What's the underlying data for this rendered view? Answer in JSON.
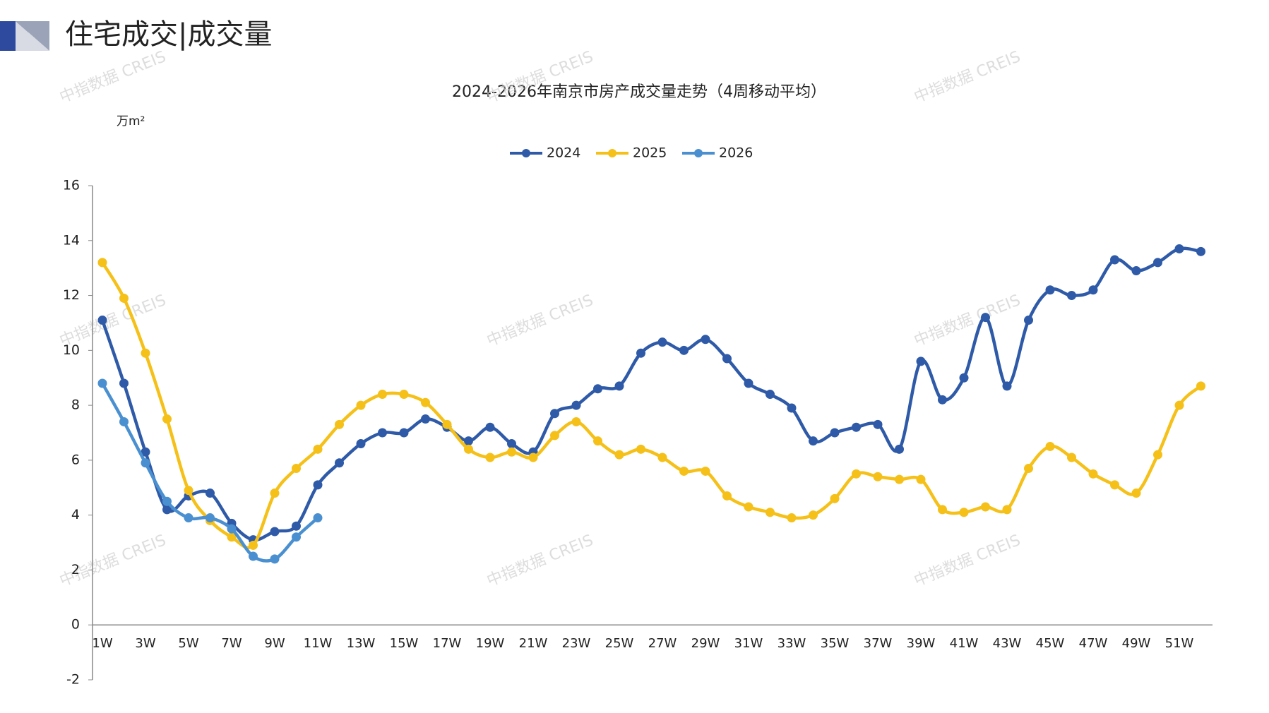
{
  "header": {
    "title": "住宅成交|成交量"
  },
  "watermark": "中指数据 CREIS",
  "chart_data": {
    "type": "line",
    "title": "2024-2026年南京市房产成交量走势（4周移动平均）",
    "ylabel": "万m²",
    "categories": [
      "1W",
      null,
      "3W",
      null,
      "5W",
      null,
      "7W",
      null,
      "9W",
      null,
      "11W",
      null,
      "13W",
      null,
      "15W",
      null,
      "17W",
      null,
      "19W",
      null,
      "21W",
      null,
      "23W",
      null,
      "25W",
      null,
      "27W",
      null,
      "29W",
      null,
      "31W",
      null,
      "33W",
      null,
      "35W",
      null,
      "37W",
      null,
      "39W",
      null,
      "41W",
      null,
      "43W",
      null,
      "45W",
      null,
      "47W",
      null,
      "49W",
      null,
      "51W",
      null
    ],
    "series": [
      {
        "name": "2024",
        "color": "#2e5aa8",
        "values": [
          11.1,
          8.8,
          6.3,
          4.2,
          4.7,
          4.8,
          3.7,
          3.1,
          3.4,
          3.6,
          5.1,
          5.9,
          6.6,
          7.0,
          7.0,
          7.5,
          7.2,
          6.7,
          7.2,
          6.6,
          6.3,
          7.7,
          8.0,
          8.6,
          8.7,
          9.9,
          10.3,
          10.0,
          10.4,
          9.7,
          8.8,
          8.4,
          7.9,
          6.7,
          7.0,
          7.2,
          7.3,
          6.4,
          9.6,
          8.2,
          9.0,
          11.2,
          8.7,
          11.1,
          12.2,
          12.0,
          12.2,
          13.3,
          12.9,
          13.2,
          13.7,
          13.6
        ]
      },
      {
        "name": "2025",
        "color": "#f5c018",
        "values": [
          13.2,
          11.9,
          9.9,
          7.5,
          4.9,
          3.8,
          3.2,
          2.9,
          4.8,
          5.7,
          6.4,
          7.3,
          8.0,
          8.4,
          8.4,
          8.1,
          7.3,
          6.4,
          6.1,
          6.3,
          6.1,
          6.9,
          7.4,
          6.7,
          6.2,
          6.4,
          6.1,
          5.6,
          5.6,
          4.7,
          4.3,
          4.1,
          3.9,
          4.0,
          4.6,
          5.5,
          5.4,
          5.3,
          5.3,
          4.2,
          4.1,
          4.3,
          4.2,
          5.7,
          6.5,
          6.1,
          5.5,
          5.1,
          4.8,
          6.2,
          8.0,
          8.7
        ]
      },
      {
        "name": "2026",
        "color": "#4a90d0",
        "values": [
          8.8,
          7.4,
          5.9,
          4.5,
          3.9,
          3.9,
          3.5,
          2.5,
          2.4,
          3.2,
          3.9,
          null,
          null,
          null,
          null,
          null,
          null,
          null,
          null,
          null,
          null,
          null,
          null,
          null,
          null,
          null,
          null,
          null,
          null,
          null,
          null,
          null,
          null,
          null,
          null,
          null,
          null,
          null,
          null,
          null,
          null,
          null,
          null,
          null,
          null,
          null,
          null,
          null,
          null,
          null,
          null,
          null
        ]
      }
    ],
    "ylim": [
      -2,
      16
    ],
    "yticks": [
      -2,
      0,
      2,
      4,
      6,
      8,
      10,
      12,
      14,
      16
    ],
    "grid": false,
    "legend": "top"
  }
}
